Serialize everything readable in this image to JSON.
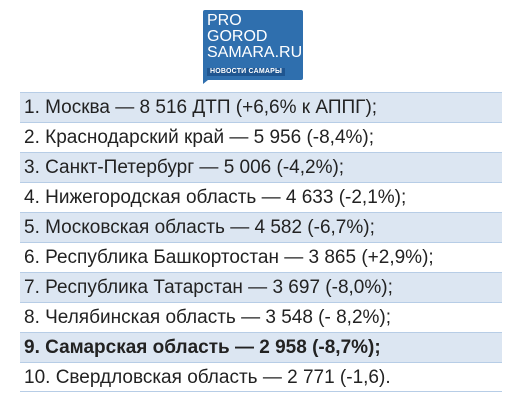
{
  "logo": {
    "lines": [
      "PRO",
      "GOROD",
      "SAMARA.RU"
    ],
    "subtitle": "НОВОСТИ САМАРЫ",
    "color": "#2f6fae"
  },
  "rows": [
    "1. Москва — 8 516 ДТП (+6,6% к АППГ);",
    "2. Краснодарский край — 5 956 (-8,4%);",
    "3. Санкт-Петербург — 5 006 (-4,2%);",
    "4. Нижегородская область — 4 633 (-2,1%);",
    "5. Московская область — 4 582 (-6,7%);",
    "6. Республика Башкортостан — 3 865 (+2,9%);",
    "7. Республика Татарстан — 3 697 (-8,0%);",
    "8. Челябинская область — 3 548 (- 8,2%);",
    "9. Самарская область — 2 958 (-8,7%);",
    "10. Свердловская область — 2 771 (-1,6)."
  ],
  "highlight_row_index": 8,
  "shade_color": "#dce6f2"
}
